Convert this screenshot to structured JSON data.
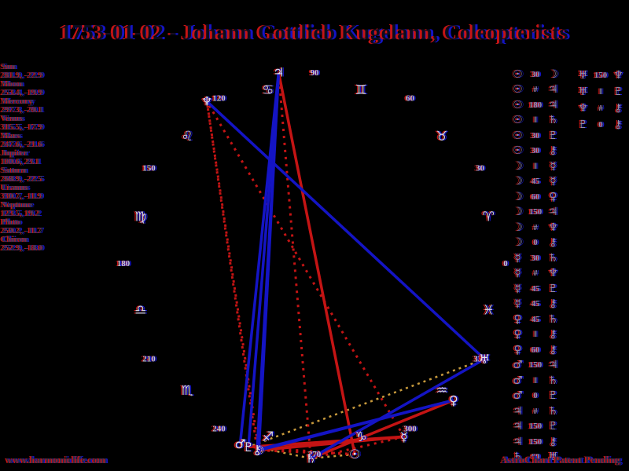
{
  "chart_data": {
    "type": "scatter",
    "title": "1753-01-02 - Johann Gottlieb Kugelann, Coleopterists",
    "layout": "circular zodiac wheel, 0° Aries at right, degrees counter-clockwise, aspect lines drawn as chords",
    "planets": [
      {
        "name": "Sun",
        "glyph": "☉",
        "lon": 281.9,
        "dec": -22.9,
        "coords": "281.9, -22.9"
      },
      {
        "name": "Moon",
        "glyph": "☽",
        "lon": 253.4,
        "dec": -19.9,
        "coords": "253.4, -19.9"
      },
      {
        "name": "Mercury",
        "glyph": "☿",
        "lon": 297.3,
        "dec": -20.1,
        "coords": "297.3, -20.1"
      },
      {
        "name": "Venus",
        "glyph": "♀",
        "lon": 315.5,
        "dec": -17.9,
        "coords": "315.5, -17.9"
      },
      {
        "name": "Mars",
        "glyph": "♂",
        "lon": 247.6,
        "dec": -21.6,
        "coords": "247.6, -21.6"
      },
      {
        "name": "Jupiter",
        "glyph": "♃",
        "lon": 100.6,
        "dec": 23.1,
        "coords": "100.6, 23.1"
      },
      {
        "name": "Saturn",
        "glyph": "♄",
        "lon": 268.9,
        "dec": -22.5,
        "coords": "268.9, -22.5"
      },
      {
        "name": "Uranus",
        "glyph": "♅",
        "lon": 330.7,
        "dec": -11.9,
        "coords": "330.7, -11.9"
      },
      {
        "name": "Neptune",
        "glyph": "♆",
        "lon": 123.5,
        "dec": 19.2,
        "coords": "123.5, 19.2"
      },
      {
        "name": "Pluto",
        "glyph": "♇",
        "lon": 250.2,
        "dec": -11.7,
        "coords": "250.2, -11.7"
      },
      {
        "name": "Chiron",
        "glyph": "⚷",
        "lon": 252.9,
        "dec": -18.0,
        "coords": "252.9, -18.0"
      }
    ],
    "wheel": {
      "degree_labels": [
        "0",
        "30",
        "60",
        "90",
        "120",
        "150",
        "180",
        "210",
        "240",
        "270",
        "300",
        "330"
      ],
      "sign_glyphs": [
        "♈",
        "♉",
        "♊",
        "♋",
        "♌",
        "♍",
        "♎",
        "♏",
        "♐",
        "♑",
        "♒",
        "♓"
      ]
    },
    "aspects": {
      "column1": [
        {
          "a": "Sun",
          "type": "30",
          "b": "Moon"
        },
        {
          "a": "Sun",
          "type": "#",
          "b": "Jupiter"
        },
        {
          "a": "Sun",
          "type": "180",
          "b": "Jupiter"
        },
        {
          "a": "Sun",
          "type": "‖",
          "b": "Saturn"
        },
        {
          "a": "Sun",
          "type": "30",
          "b": "Pluto"
        },
        {
          "a": "Sun",
          "type": "30",
          "b": "Chiron"
        },
        {
          "a": "Moon",
          "type": "‖",
          "b": "Mercury"
        },
        {
          "a": "Moon",
          "type": "45",
          "b": "Mercury"
        },
        {
          "a": "Moon",
          "type": "60",
          "b": "Venus"
        },
        {
          "a": "Moon",
          "type": "150",
          "b": "Jupiter"
        },
        {
          "a": "Moon",
          "type": "#",
          "b": "Neptune"
        },
        {
          "a": "Moon",
          "type": "0",
          "b": "Chiron"
        },
        {
          "a": "Mercury",
          "type": "30",
          "b": "Saturn"
        },
        {
          "a": "Mercury",
          "type": "#",
          "b": "Neptune"
        },
        {
          "a": "Mercury",
          "type": "45",
          "b": "Pluto"
        },
        {
          "a": "Mercury",
          "type": "45",
          "b": "Chiron"
        },
        {
          "a": "Venus",
          "type": "45",
          "b": "Saturn"
        },
        {
          "a": "Venus",
          "type": "‖",
          "b": "Chiron"
        },
        {
          "a": "Venus",
          "type": "60",
          "b": "Chiron"
        },
        {
          "a": "Mars",
          "type": "150",
          "b": "Jupiter"
        },
        {
          "a": "Mars",
          "type": "‖",
          "b": "Saturn"
        },
        {
          "a": "Mars",
          "type": "0",
          "b": "Pluto"
        },
        {
          "a": "Jupiter",
          "type": "#",
          "b": "Saturn"
        },
        {
          "a": "Jupiter",
          "type": "150",
          "b": "Pluto"
        },
        {
          "a": "Jupiter",
          "type": "150",
          "b": "Chiron"
        },
        {
          "a": "Saturn",
          "type": "60",
          "b": "Uranus"
        }
      ],
      "column2": [
        {
          "a": "Uranus",
          "type": "150",
          "b": "Neptune"
        },
        {
          "a": "Uranus",
          "type": "‖",
          "b": "Pluto"
        },
        {
          "a": "Neptune",
          "type": "#",
          "b": "Chiron"
        },
        {
          "a": "Pluto",
          "type": "0",
          "b": "Chiron"
        }
      ]
    },
    "aspect_symbols": {
      "parallel": "‖",
      "contraparallel": "#"
    }
  },
  "footer": {
    "left": "www.harmoniclife.com",
    "right": "AstroChart Patent Pending"
  },
  "colors": {
    "red": "#c41414",
    "blue": "#1414c4",
    "gold": "#c89a3c"
  }
}
